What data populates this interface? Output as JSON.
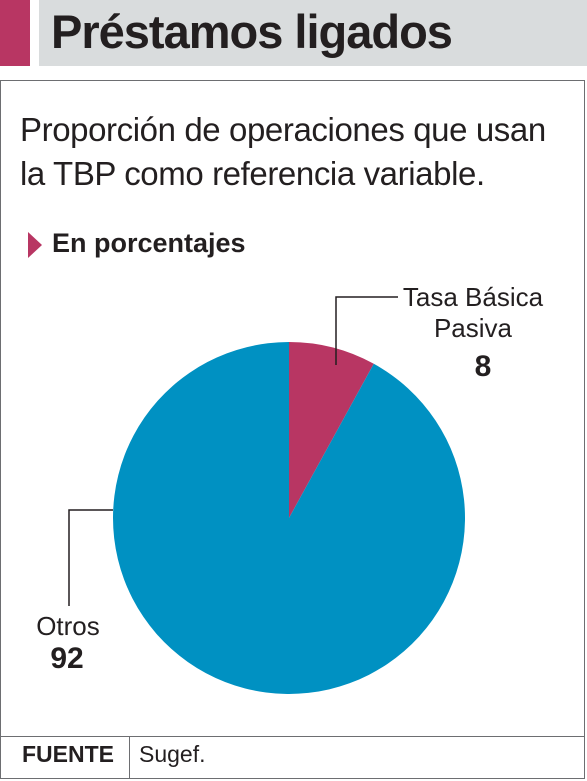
{
  "header": {
    "title": "Préstamos ligados",
    "accent_color": "#b83663"
  },
  "subtitle": "Proporción de operaciones que usan la TBP como referencia variable.",
  "unit_label": "En porcentajes",
  "chart_data": {
    "type": "pie",
    "slices": [
      {
        "label": "Tasa Básica Pasiva",
        "value": 8,
        "color": "#b83663"
      },
      {
        "label": "Otros",
        "value": 92,
        "color": "#0091c2"
      }
    ]
  },
  "footer": {
    "source_label": "FUENTE",
    "source_value": "Sugef."
  }
}
